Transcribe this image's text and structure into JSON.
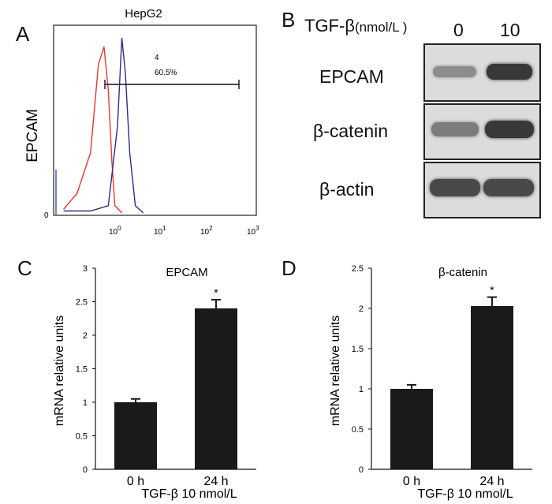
{
  "panels": {
    "A": {
      "letter": "A",
      "title": "HepG2",
      "ylabel": "EPCAM",
      "y_tick": "0",
      "x_ticks": [
        "0",
        "1",
        "2",
        "3"
      ],
      "gate_label_top": "4",
      "gate_label_pct": "60.5%"
    },
    "B": {
      "letter": "B",
      "treatment_label": "TGF-β",
      "treatment_unit": "(nmol/L )",
      "lanes": [
        "0",
        "10"
      ],
      "rows": [
        {
          "label": "EPCAM",
          "band_intensity": [
            0.35,
            0.85
          ]
        },
        {
          "label": "β-catenin",
          "band_intensity": [
            0.45,
            0.85
          ]
        },
        {
          "label": "β-actin",
          "band_intensity": [
            0.75,
            0.75
          ]
        }
      ]
    },
    "C": {
      "letter": "C"
    },
    "D": {
      "letter": "D"
    }
  },
  "shared": {
    "ylabel": "mRNA  relative  units",
    "treatment_caption": "TGF-β 10 nmol/L",
    "significance_mark": "*"
  },
  "chart_data": [
    {
      "type": "line",
      "title": "HepG2",
      "ylabel": "EPCAM",
      "x_scale": "log",
      "series": [
        {
          "color": "#e8382f",
          "x": [
            0.05,
            0.1,
            0.2,
            0.3,
            0.4,
            0.5,
            0.6,
            0.7,
            1.0
          ],
          "y": [
            0.03,
            0.12,
            0.35,
            0.85,
            0.95,
            0.7,
            0.3,
            0.05,
            0.01
          ]
        },
        {
          "color": "#2e2d8a",
          "x": [
            0.05,
            0.2,
            0.5,
            0.8,
            1.0,
            1.2,
            1.5,
            2.0,
            3.0
          ],
          "y": [
            0.02,
            0.02,
            0.05,
            0.5,
            1.0,
            0.8,
            0.35,
            0.05,
            0.01
          ]
        }
      ],
      "gate": {
        "x_start": 0.7,
        "x_end": 400,
        "label_top": "4",
        "label_pct": "60.5%"
      }
    },
    {
      "type": "bar",
      "title": "EPCAM",
      "ylabel": "mRNA  relative  units",
      "categories": [
        "0 h",
        "24 h"
      ],
      "values": [
        1.0,
        2.4
      ],
      "errors": [
        0.05,
        0.13
      ],
      "ylim": [
        0,
        3
      ],
      "yticks": [
        "0",
        "0.5",
        "1",
        "1.5",
        "2",
        "2.5",
        "3"
      ],
      "significance": [
        false,
        true
      ],
      "xcaption": "TGF-β 10 nmol/L"
    },
    {
      "type": "bar",
      "title": "β-catenin",
      "ylabel": "mRNA  relative  units",
      "categories": [
        "0 h",
        "24 h"
      ],
      "values": [
        1.0,
        2.03
      ],
      "errors": [
        0.05,
        0.11
      ],
      "ylim": [
        0,
        2.5
      ],
      "yticks": [
        "0",
        "0.5",
        "1",
        "1.5",
        "2",
        "2.5"
      ],
      "significance": [
        false,
        true
      ],
      "xcaption": "TGF-β 10 nmol/L"
    }
  ]
}
